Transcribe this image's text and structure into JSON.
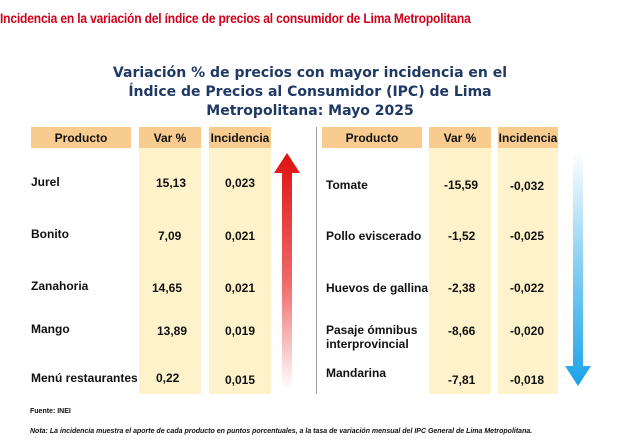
{
  "heading": "Incidencia en la variación del índice de precios al consumidor de Lima Metropolitana",
  "title_lines": [
    "Variación % de precios con mayor incidencia en el",
    "Índice de Precios al Consumidor (IPC) de Lima",
    "Metropolitana: Mayo 2025"
  ],
  "headers": {
    "product": "Producto",
    "var": "Var %",
    "incidence": "Incidencia"
  },
  "increases": [
    {
      "product": "Jurel",
      "var": "15,13",
      "incidence": "0,023"
    },
    {
      "product": "Bonito",
      "var": "7,09",
      "incidence": "0,021"
    },
    {
      "product": "Zanahoria",
      "var": "14,65",
      "incidence": "0,021"
    },
    {
      "product": "Mango",
      "var": "13,89",
      "incidence": "0,019"
    },
    {
      "product": "Menú restaurantes",
      "var": "0,22",
      "incidence": "0,015"
    }
  ],
  "decreases": [
    {
      "product": "Tomate",
      "var": "-15,59",
      "incidence": "-0,032"
    },
    {
      "product": "Pollo eviscerado",
      "var": "-1,52",
      "incidence": "-0,025"
    },
    {
      "product": "Huevos de gallina",
      "var": "-2,38",
      "incidence": "-0,022"
    },
    {
      "product": "Pasaje ómnibus interprovincial",
      "var": "-8,66",
      "incidence": "-0,020"
    },
    {
      "product": "Mandarina",
      "var": "-7,81",
      "incidence": "-0,018"
    }
  ],
  "source": "Fuente: INEI",
  "note": "Nota: La incidencia muestra el aporte de cada producto en puntos porcentuales, a la tasa de variación mensual del IPC General de Lima Metropolitana.",
  "colors": {
    "heading": "#d0021b",
    "title": "#1f3864",
    "header_fill": "#f8cb8f",
    "column_fill": "#fdf2c9",
    "up_arrow": "#e01010",
    "down_arrow": "#1aa3e8"
  },
  "icons": {
    "up": "up-arrow-icon",
    "down": "down-arrow-icon"
  }
}
